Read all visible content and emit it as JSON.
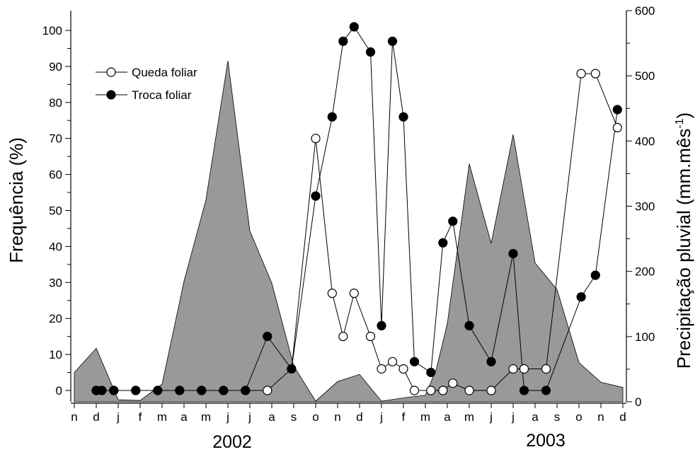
{
  "chart_data": {
    "type": "line",
    "title": "",
    "xlabel": "",
    "ylabel": "Frequência (%)",
    "y2label": "Precipitação pluvial (mm.mês",
    "y2label_sup": "-1",
    "x_tick_labels": [
      "n",
      "d",
      "j",
      "f",
      "m",
      "a",
      "m",
      "j",
      "j",
      "a",
      "s",
      "o",
      "n",
      "d",
      "j",
      "f",
      "m",
      "a",
      "m",
      "j",
      "j",
      "a",
      "s",
      "o",
      "n",
      "d"
    ],
    "year_labels": [
      "2002",
      "2003"
    ],
    "ylim": [
      -2,
      103
    ],
    "y_ticks": [
      0,
      10,
      20,
      30,
      40,
      50,
      60,
      70,
      80,
      90,
      100
    ],
    "y2lim": [
      0,
      600
    ],
    "y2_ticks": [
      0,
      100,
      200,
      300,
      400,
      500,
      600
    ],
    "legend_position": "top-left",
    "precipitation": {
      "name": "",
      "axis": "right",
      "color": "#999999",
      "points": [
        [
          0,
          45
        ],
        [
          1,
          82
        ],
        [
          2,
          3
        ],
        [
          3,
          2
        ],
        [
          4,
          27
        ],
        [
          5,
          185
        ],
        [
          6,
          310
        ],
        [
          7,
          523
        ],
        [
          8,
          262
        ],
        [
          9,
          182
        ],
        [
          10,
          55
        ],
        [
          11,
          1
        ],
        [
          12,
          31
        ],
        [
          13,
          42
        ],
        [
          14,
          1
        ],
        [
          15,
          6
        ],
        [
          16,
          10
        ],
        [
          16.5,
          50
        ],
        [
          17,
          120
        ],
        [
          18,
          365
        ],
        [
          19,
          243
        ],
        [
          20,
          410
        ],
        [
          21,
          213
        ],
        [
          22,
          172
        ],
        [
          23,
          60
        ],
        [
          24,
          30
        ],
        [
          25,
          22
        ]
      ]
    },
    "series": [
      {
        "name": "Queda foliar",
        "marker": "open-circle",
        "points": [
          [
            1,
            0
          ],
          [
            1.25,
            0
          ],
          [
            1.8,
            0
          ],
          [
            2.8,
            0
          ],
          [
            3.8,
            0
          ],
          [
            4.8,
            0
          ],
          [
            5.8,
            0
          ],
          [
            6.8,
            0
          ],
          [
            7.8,
            0
          ],
          [
            8.8,
            0
          ],
          [
            9.9,
            6
          ],
          [
            11,
            70
          ],
          [
            11.75,
            27
          ],
          [
            12.25,
            15
          ],
          [
            12.75,
            27
          ],
          [
            13.5,
            15
          ],
          [
            14,
            6
          ],
          [
            14.5,
            8
          ],
          [
            15,
            6
          ],
          [
            15.5,
            0
          ],
          [
            16.25,
            0
          ],
          [
            16.8,
            0
          ],
          [
            17.25,
            2
          ],
          [
            18,
            0
          ],
          [
            19,
            0
          ],
          [
            20,
            6
          ],
          [
            20.5,
            6
          ],
          [
            21.5,
            6
          ],
          [
            23.1,
            88
          ],
          [
            23.75,
            88
          ],
          [
            24.75,
            73
          ]
        ]
      },
      {
        "name": "Troca foliar",
        "marker": "filled-circle",
        "points": [
          [
            1,
            0
          ],
          [
            1.25,
            0
          ],
          [
            1.8,
            0
          ],
          [
            2.8,
            0
          ],
          [
            3.8,
            0
          ],
          [
            4.8,
            0
          ],
          [
            5.8,
            0
          ],
          [
            6.8,
            0
          ],
          [
            7.8,
            0
          ],
          [
            8.8,
            15
          ],
          [
            9.9,
            6
          ],
          [
            11,
            54
          ],
          [
            11.75,
            76
          ],
          [
            12.25,
            97
          ],
          [
            12.75,
            101
          ],
          [
            13.5,
            94
          ],
          [
            14,
            18
          ],
          [
            14.5,
            97
          ],
          [
            15,
            76
          ],
          [
            15.5,
            8
          ],
          [
            16.25,
            5
          ],
          [
            16.8,
            41
          ],
          [
            17.25,
            47
          ],
          [
            18,
            18
          ],
          [
            19,
            8
          ],
          [
            20,
            38
          ],
          [
            20.5,
            0
          ],
          [
            21.5,
            0
          ],
          [
            23.1,
            26
          ],
          [
            23.75,
            32
          ],
          [
            24.75,
            78
          ]
        ]
      }
    ]
  }
}
